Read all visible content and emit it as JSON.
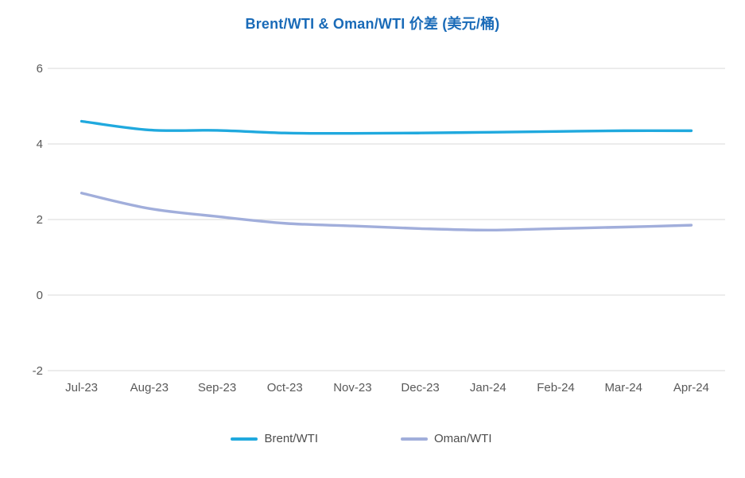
{
  "colors": {
    "title": "#1a6bb8",
    "axis_label": "#595959",
    "gridline": "#d9d9d9",
    "background": "#ffffff"
  },
  "legend": {
    "position": "bottom"
  },
  "chart_data": {
    "type": "line",
    "title": "Brent/WTI & Oman/WTI 价差 (美元/桶)",
    "categories": [
      "Jul-23",
      "Aug-23",
      "Sep-23",
      "Oct-23",
      "Nov-23",
      "Dec-23",
      "Jan-24",
      "Feb-24",
      "Mar-24",
      "Apr-24"
    ],
    "series": [
      {
        "name": "Brent/WTI",
        "color": "#20a9de",
        "values": [
          4.6,
          4.37,
          4.36,
          4.29,
          4.28,
          4.29,
          4.31,
          4.33,
          4.35,
          4.35
        ]
      },
      {
        "name": "Oman/WTI",
        "color": "#a1aedb",
        "values": [
          2.7,
          2.29,
          2.08,
          1.9,
          1.83,
          1.76,
          1.72,
          1.76,
          1.8,
          1.85
        ]
      }
    ],
    "xlabel": "",
    "ylabel": "",
    "ylim": [
      -2,
      6
    ],
    "yticks": [
      6,
      4,
      2,
      0,
      -2
    ],
    "grid": "horizontal",
    "legend_position": "bottom",
    "smooth_lines": true
  }
}
